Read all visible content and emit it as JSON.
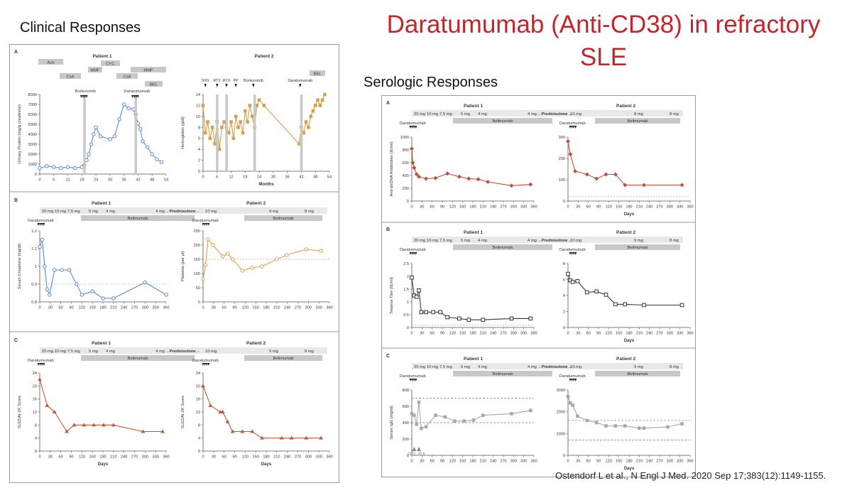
{
  "slide": {
    "title_line1": "Daratumumab (Anti-CD38) in refractory",
    "title_line2": "SLE",
    "left_heading": "Clinical Responses",
    "right_heading": "Serologic Responses",
    "citation": "Ostendorf L et al., N Engl J Med. 2020 Sep 17;383(12):1149-1155."
  },
  "colors": {
    "blue": "#5b8ac6",
    "gold": "#d4a04a",
    "rust": "#b85c3a",
    "red": "#c0503a",
    "black": "#333333",
    "gray": "#a8a8a8",
    "bar": "#c8c8c8",
    "title_red": "#c0262c"
  },
  "pred": {
    "p1": [
      "20 mg",
      "10 mg",
      "7.5 mg",
      "5 mg",
      "4 mg",
      "4 mg"
    ],
    "arrow": "→Prednisolone→",
    "p2": [
      "10 mg",
      "9 mg",
      "8 mg"
    ],
    "belimumab": "Belimumab"
  },
  "labels": {
    "daratumumab": "Daratumumab",
    "bortezomib": "Bortezomib",
    "patient1": "Patient 1",
    "patient2": "Patient 2",
    "days": "Days",
    "months": "Months"
  },
  "chart_data": [
    {
      "id": "clinical-A1",
      "panel": "A",
      "title": "Patient 1",
      "type": "line",
      "xlabel": "",
      "ylabel": "Urinary Protein (mg/g creatinine)",
      "xlim": [
        0,
        54
      ],
      "ylim": [
        0,
        8000
      ],
      "xticks": [
        0,
        6,
        12,
        18,
        24,
        30,
        36,
        42,
        48,
        54
      ],
      "yticks": [
        0,
        1000,
        2000,
        3000,
        4000,
        5000,
        6000,
        7000,
        8000
      ],
      "marker": "circle",
      "color_key": "blue",
      "treatments": [
        "Aza",
        "CsA",
        "MMF",
        "CYC",
        "CsA",
        "MMF",
        "BEL"
      ],
      "events": [
        "Bortezomib",
        "Daratumumab"
      ],
      "series": [
        {
          "x": [
            0,
            3,
            6,
            9,
            12,
            15,
            18,
            19,
            20,
            21,
            22,
            23,
            24,
            26,
            30,
            32,
            34,
            36,
            38,
            40,
            41,
            42,
            43,
            44,
            46,
            48,
            50,
            52
          ],
          "values": [
            600,
            800,
            700,
            600,
            700,
            600,
            700,
            900,
            1400,
            2000,
            3000,
            4000,
            4700,
            3800,
            3500,
            3800,
            5500,
            7000,
            6600,
            6500,
            6000,
            5100,
            4500,
            3300,
            2700,
            2000,
            1500,
            1200
          ]
        }
      ]
    },
    {
      "id": "clinical-A2",
      "panel": "A",
      "title": "Patient 2",
      "type": "line",
      "xlabel": "Months",
      "ylabel": "Hemoglobin (g/dl)",
      "xlim": [
        0,
        54
      ],
      "ylim": [
        0,
        14
      ],
      "xticks": [
        0,
        6,
        12,
        18,
        24,
        30,
        36,
        42,
        48,
        54
      ],
      "yticks": [
        0,
        2,
        4,
        6,
        8,
        10,
        12,
        14
      ],
      "marker": "square",
      "color_key": "gold",
      "treatments": [
        "BEL"
      ],
      "events": [
        "IVIG",
        "RTX",
        "RTX",
        "PP",
        "Bortezomib",
        "Daratumumab"
      ],
      "series": [
        {
          "x": [
            0,
            1,
            2,
            3,
            4,
            5,
            6,
            7,
            8,
            9,
            10,
            11,
            12,
            13,
            14,
            15,
            16,
            17,
            18,
            19,
            20,
            21,
            22,
            23,
            24,
            26,
            41,
            42,
            43,
            44,
            45,
            46,
            47,
            48,
            49,
            50,
            51,
            52
          ],
          "values": [
            12,
            7,
            9,
            6,
            8,
            5,
            9,
            4,
            8,
            9,
            8,
            7,
            9,
            6,
            10,
            8,
            9,
            7,
            11,
            9,
            12,
            10,
            8,
            12,
            13,
            12,
            5,
            8,
            7,
            9,
            8,
            10,
            11,
            12,
            13,
            12,
            13,
            14
          ]
        }
      ]
    },
    {
      "id": "clinical-B1",
      "panel": "B",
      "title": "Patient 1",
      "type": "line",
      "xlabel": "",
      "ylabel": "Serum Creatinine (mg/dl)",
      "xlim": [
        0,
        360
      ],
      "ylim": [
        0.8,
        1.2
      ],
      "xticks": [
        0,
        30,
        60,
        90,
        120,
        150,
        180,
        210,
        240,
        270,
        300,
        330,
        360
      ],
      "yticks": [
        0.8,
        0.9,
        1.0,
        1.1,
        1.2
      ],
      "marker": "circle",
      "color_key": "blue",
      "reference": 0.9,
      "series": [
        {
          "x": [
            0,
            7,
            14,
            21,
            28,
            42,
            63,
            84,
            105,
            120,
            150,
            180,
            210,
            300,
            360
          ],
          "values": [
            1.11,
            1.15,
            1.0,
            0.87,
            0.84,
            0.98,
            0.98,
            0.98,
            0.9,
            0.84,
            0.86,
            0.82,
            0.82,
            0.91,
            0.84
          ]
        }
      ]
    },
    {
      "id": "clinical-B2",
      "panel": "B",
      "title": "Patient 2",
      "type": "line",
      "xlabel": "",
      "ylabel": "Platelets (per μl)",
      "xlim": [
        0,
        360
      ],
      "ylim": [
        0,
        250
      ],
      "xticks": [
        0,
        30,
        60,
        90,
        120,
        150,
        180,
        210,
        240,
        270,
        300,
        330,
        360
      ],
      "yticks": [
        0,
        50,
        100,
        150,
        200,
        250
      ],
      "marker": "circle",
      "color_key": "gold",
      "reference": 150,
      "series": [
        {
          "x": [
            0,
            7,
            14,
            28,
            56,
            70,
            84,
            112,
            140,
            168,
            210,
            238,
            294,
            336
          ],
          "values": [
            80,
            130,
            220,
            200,
            160,
            170,
            150,
            110,
            120,
            125,
            150,
            165,
            185,
            180
          ]
        }
      ]
    },
    {
      "id": "clinical-C1",
      "panel": "C",
      "title": "Patient 1",
      "type": "line",
      "xlabel": "Days",
      "ylabel": "SLEDAI-2K Score",
      "xlim": [
        0,
        360
      ],
      "ylim": [
        0,
        24
      ],
      "xticks": [
        0,
        30,
        60,
        90,
        120,
        150,
        180,
        210,
        240,
        270,
        300,
        330,
        360
      ],
      "yticks": [
        0,
        4,
        8,
        12,
        16,
        20,
        24
      ],
      "marker": "triangle",
      "color_key": "rust",
      "series": [
        {
          "x": [
            0,
            21,
            42,
            77,
            98,
            126,
            154,
            182,
            210,
            294,
            350
          ],
          "values": [
            22,
            14,
            12,
            6,
            8,
            8,
            8,
            8,
            8,
            6,
            6
          ]
        }
      ]
    },
    {
      "id": "clinical-C2",
      "panel": "C",
      "title": "Patient 2",
      "type": "line",
      "xlabel": "Days",
      "ylabel": "SLEDAI-2K Score",
      "xlim": [
        0,
        360
      ],
      "ylim": [
        0,
        24
      ],
      "xticks": [
        0,
        30,
        60,
        90,
        120,
        150,
        180,
        210,
        240,
        270,
        300,
        330,
        360
      ],
      "yticks": [
        0,
        4,
        8,
        12,
        16,
        20,
        24
      ],
      "marker": "triangle",
      "color_key": "rust",
      "series": [
        {
          "x": [
            0,
            21,
            49,
            56,
            70,
            84,
            112,
            140,
            168,
            224,
            252,
            294,
            336
          ],
          "values": [
            20,
            14,
            12,
            12,
            9,
            6,
            6,
            6,
            4,
            4,
            4,
            4,
            4
          ]
        }
      ]
    },
    {
      "id": "sero-A1",
      "panel": "A",
      "title": "Patient 1",
      "type": "line",
      "xlabel": "",
      "ylabel": "Anti-dsDNA Antibodies (IE/ml)",
      "xlim": [
        0,
        360
      ],
      "ylim": [
        0,
        1000
      ],
      "xticks": [
        0,
        30,
        60,
        90,
        120,
        150,
        180,
        210,
        240,
        270,
        300,
        330,
        360
      ],
      "yticks": [
        0,
        200,
        400,
        600,
        800,
        1000
      ],
      "marker": "diamond",
      "color_key": "red",
      "series": [
        {
          "x": [
            0,
            3,
            7,
            14,
            21,
            42,
            70,
            105,
            140,
            168,
            196,
            224,
            294,
            350
          ],
          "values": [
            820,
            600,
            520,
            420,
            380,
            350,
            360,
            430,
            380,
            350,
            340,
            300,
            240,
            260
          ]
        }
      ]
    },
    {
      "id": "sero-A2",
      "panel": "A",
      "title": "Patient 2",
      "type": "line",
      "xlabel": "Days",
      "ylabel": "",
      "xlim": [
        0,
        360
      ],
      "ylim": [
        0,
        300
      ],
      "xticks": [
        0,
        30,
        60,
        90,
        120,
        150,
        180,
        210,
        240,
        270,
        300,
        330,
        360
      ],
      "yticks": [
        0,
        100,
        200,
        300
      ],
      "marker": "diamond",
      "color_key": "red",
      "reference": 20,
      "series": [
        {
          "x": [
            0,
            7,
            21,
            56,
            84,
            112,
            140,
            168,
            224,
            336
          ],
          "values": [
            280,
            220,
            140,
            125,
            105,
            125,
            125,
            75,
            75,
            75
          ]
        }
      ]
    },
    {
      "id": "sero-B1",
      "panel": "B",
      "title": "Patient 1",
      "type": "line",
      "xlabel": "",
      "ylabel": "Tetanus Titer (IE/ml)",
      "xlim": [
        0,
        360
      ],
      "ylim": [
        0,
        2.5
      ],
      "xticks": [
        0,
        30,
        60,
        90,
        120,
        150,
        180,
        210,
        240,
        270,
        300,
        330,
        360
      ],
      "yticks": [
        0,
        0.5,
        1.0,
        1.5,
        2.0,
        2.5
      ],
      "marker": "square-open",
      "color_key": "black",
      "reference": 0.1,
      "series": [
        {
          "x": [
            0,
            7,
            14,
            21,
            28,
            42,
            63,
            84,
            105,
            140,
            168,
            210,
            294,
            350
          ],
          "values": [
            1.95,
            1.25,
            1.2,
            1.45,
            0.6,
            0.6,
            0.6,
            0.6,
            0.4,
            0.35,
            0.3,
            0.3,
            0.35,
            0.35
          ]
        }
      ]
    },
    {
      "id": "sero-B2",
      "panel": "B",
      "title": "Patient 2",
      "type": "line",
      "xlabel": "Days",
      "ylabel": "",
      "xlim": [
        0,
        360
      ],
      "ylim": [
        0,
        8
      ],
      "xticks": [
        0,
        30,
        60,
        90,
        120,
        150,
        180,
        210,
        240,
        270,
        300,
        330,
        360
      ],
      "yticks": [
        0,
        2,
        4,
        6,
        8
      ],
      "marker": "square-open",
      "color_key": "black",
      "series": [
        {
          "x": [
            0,
            7,
            14,
            28,
            56,
            84,
            112,
            140,
            168,
            224,
            336
          ],
          "values": [
            6.7,
            5.9,
            5.7,
            5.8,
            4.4,
            4.5,
            4.1,
            2.9,
            2.9,
            2.8,
            2.8
          ]
        }
      ]
    },
    {
      "id": "sero-C1",
      "panel": "C",
      "title": "Patient 1",
      "type": "line",
      "xlabel": "",
      "ylabel": "Serum IgG (mg/dl)",
      "xlim": [
        0,
        360
      ],
      "ylim": [
        0,
        800
      ],
      "xticks": [
        0,
        30,
        60,
        90,
        120,
        150,
        180,
        210,
        240,
        270,
        300,
        330,
        360
      ],
      "yticks": [
        0,
        200,
        400,
        600,
        800
      ],
      "marker": "square",
      "color_key": "gray",
      "reference_band": [
        400,
        700
      ],
      "annotation": "IVIG, 30 g",
      "series": [
        {
          "x": [
            0,
            7,
            14,
            21,
            28,
            42,
            70,
            98,
            126,
            154,
            182,
            210,
            294,
            350
          ],
          "values": [
            510,
            490,
            380,
            650,
            330,
            350,
            490,
            470,
            420,
            420,
            430,
            490,
            510,
            550
          ]
        }
      ]
    },
    {
      "id": "sero-C2",
      "panel": "C",
      "title": "Patient 2",
      "type": "line",
      "xlabel": "Days",
      "ylabel": "",
      "xlim": [
        0,
        360
      ],
      "ylim": [
        0,
        3000
      ],
      "xticks": [
        0,
        30,
        60,
        90,
        120,
        150,
        180,
        210,
        240,
        270,
        300,
        330,
        360
      ],
      "yticks": [
        0,
        1000,
        2000,
        3000
      ],
      "marker": "square",
      "color_key": "gray",
      "reference_band": [
        700,
        1600
      ],
      "series": [
        {
          "x": [
            0,
            7,
            14,
            28,
            56,
            84,
            112,
            140,
            168,
            210,
            224,
            294,
            336
          ],
          "values": [
            2700,
            2400,
            2300,
            1800,
            1600,
            1500,
            1350,
            1350,
            1350,
            1250,
            1250,
            1300,
            1450
          ]
        }
      ]
    }
  ]
}
